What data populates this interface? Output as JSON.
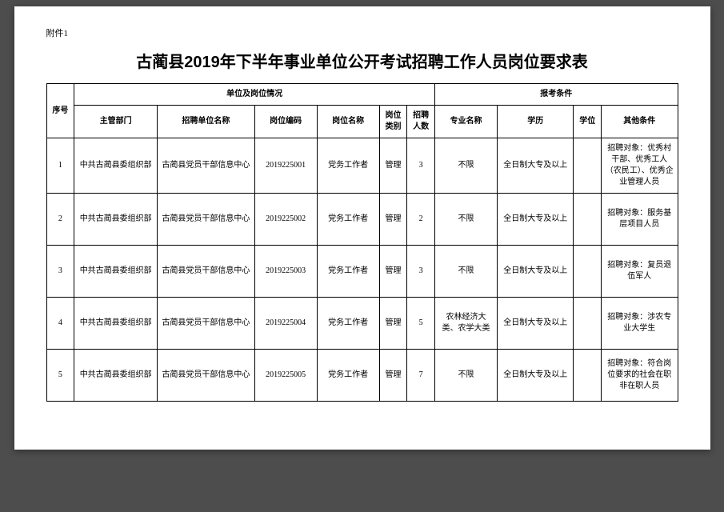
{
  "attachment_label": "附件1",
  "title": "古蔺县2019年下半年事业单位公开考试招聘工作人员岗位要求表",
  "header_group_left": "单位及岗位情况",
  "header_group_right": "报考条件",
  "columns": {
    "seq": "序号",
    "dept": "主管部门",
    "unit": "招聘单位名称",
    "code": "岗位编码",
    "pos": "岗位名称",
    "cat": "岗位类别",
    "num": "招聘人数",
    "major": "专业名称",
    "edu": "学历",
    "degree": "学位",
    "other": "其他条件"
  },
  "rows": [
    {
      "seq": "1",
      "dept": "中共古蔺县委组织部",
      "unit": "古蔺县党员干部信息中心",
      "code": "2019225001",
      "pos": "党务工作者",
      "cat": "管理",
      "num": "3",
      "major": "不限",
      "edu": "全日制大专及以上",
      "degree": "",
      "other": "招聘对象：优秀村干部、优秀工人（农民工）、优秀企业管理人员"
    },
    {
      "seq": "2",
      "dept": "中共古蔺县委组织部",
      "unit": "古蔺县党员干部信息中心",
      "code": "2019225002",
      "pos": "党务工作者",
      "cat": "管理",
      "num": "2",
      "major": "不限",
      "edu": "全日制大专及以上",
      "degree": "",
      "other": "招聘对象：服务基层项目人员"
    },
    {
      "seq": "3",
      "dept": "中共古蔺县委组织部",
      "unit": "古蔺县党员干部信息中心",
      "code": "2019225003",
      "pos": "党务工作者",
      "cat": "管理",
      "num": "3",
      "major": "不限",
      "edu": "全日制大专及以上",
      "degree": "",
      "other": "招聘对象：复员退伍军人"
    },
    {
      "seq": "4",
      "dept": "中共古蔺县委组织部",
      "unit": "古蔺县党员干部信息中心",
      "code": "2019225004",
      "pos": "党务工作者",
      "cat": "管理",
      "num": "5",
      "major": "农林经济大类、农学大类",
      "edu": "全日制大专及以上",
      "degree": "",
      "other": "招聘对象：涉农专业大学生"
    },
    {
      "seq": "5",
      "dept": "中共古蔺县委组织部",
      "unit": "古蔺县党员干部信息中心",
      "code": "2019225005",
      "pos": "党务工作者",
      "cat": "管理",
      "num": "7",
      "major": "不限",
      "edu": "全日制大专及以上",
      "degree": "",
      "other": "招聘对象：符合岗位要求的社会在职非在职人员"
    }
  ]
}
